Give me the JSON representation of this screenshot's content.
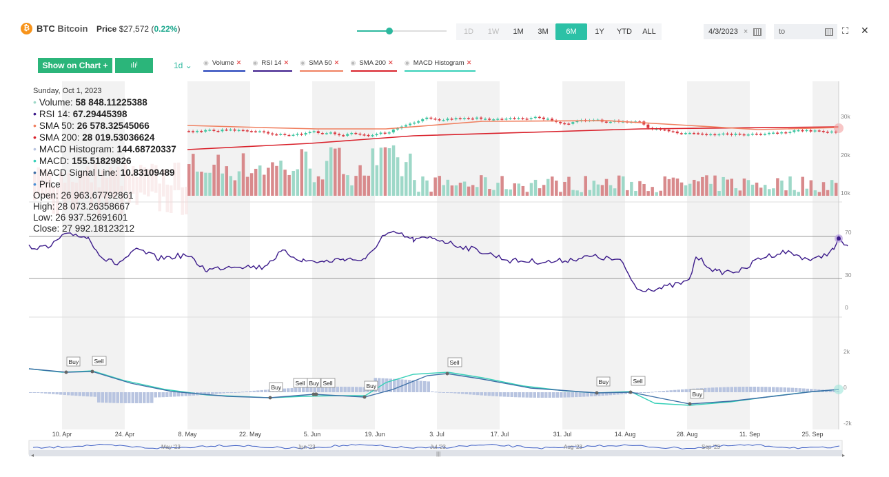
{
  "header": {
    "coin_symbol": "BTC",
    "coin_name": "Bitcoin",
    "price_label": "Price",
    "price_value": "$27,572",
    "change": "0.22%",
    "ranges": [
      "1D",
      "1W",
      "1M",
      "3M",
      "6M",
      "1Y",
      "YTD",
      "ALL"
    ],
    "active_range": "6M",
    "from_date": "4/3/2023",
    "to_placeholder": "to"
  },
  "toolbar": {
    "show_on_chart": "Show on Chart +",
    "interval": "1d",
    "indicators": [
      {
        "label": "Volume",
        "color": "#1e3db8"
      },
      {
        "label": "RSI 14",
        "color": "#3b1a8a"
      },
      {
        "label": "SMA 50",
        "color": "#f08060"
      },
      {
        "label": "SMA 200",
        "color": "#d9212b"
      },
      {
        "label": "MACD Histogram",
        "color": "#36d0b8"
      }
    ]
  },
  "tooltip": {
    "date": "Sunday, Oct 1, 2023",
    "lines": [
      {
        "label": "Volume:",
        "value": "58 848.11225388",
        "color": "#9ed8c8"
      },
      {
        "label": "RSI 14:",
        "value": "67.29445398",
        "color": "#3b1a8a"
      },
      {
        "label": "SMA 50:",
        "value": "26 578.32545066",
        "color": "#f08060"
      },
      {
        "label": "SMA 200:",
        "value": "28 019.53036624",
        "color": "#d9212b"
      },
      {
        "label": "MACD Histogram:",
        "value": "144.68720337",
        "color": "#b8c4e0"
      },
      {
        "label": "MACD:",
        "value": "155.51829826",
        "color": "#36d0b8"
      },
      {
        "label": "MACD Signal Line:",
        "value": "10.83109489",
        "color": "#3d6fa6"
      },
      {
        "label": "Price",
        "value": "",
        "color": "#4a8fd6"
      }
    ],
    "open": "Open: 26 963.67792861",
    "high": "High: 28 073.26358667",
    "low": "Low: 26 937.52691601",
    "close": "Close: 27 992.18123212"
  },
  "axes": {
    "price_ticks": [
      "30k",
      "20k",
      "10k"
    ],
    "rsi_ticks": [
      "70",
      "30",
      "0"
    ],
    "macd_ticks": [
      "2k",
      "0",
      "-2k"
    ],
    "x_ticks": [
      "10. Apr",
      "24. Apr",
      "8. May",
      "22. May",
      "5. Jun",
      "19. Jun",
      "3. Jul",
      "17. Jul",
      "31. Jul",
      "14. Aug",
      "28. Aug",
      "11. Sep",
      "25. Sep"
    ],
    "navigator_labels": [
      "May '23",
      "Jun '23",
      "Jul '23",
      "Aug '23",
      "Sep '23"
    ]
  },
  "signals": [
    "Buy",
    "Sell",
    "Buy",
    "Sell",
    "Buy",
    "Sell",
    "Buy",
    "Sell",
    "Buy",
    "Sell",
    "Buy"
  ],
  "colors": {
    "accent": "#2cc1a6",
    "up": "#3cc5a0",
    "down": "#d9363e",
    "button": "#2bb57a"
  }
}
